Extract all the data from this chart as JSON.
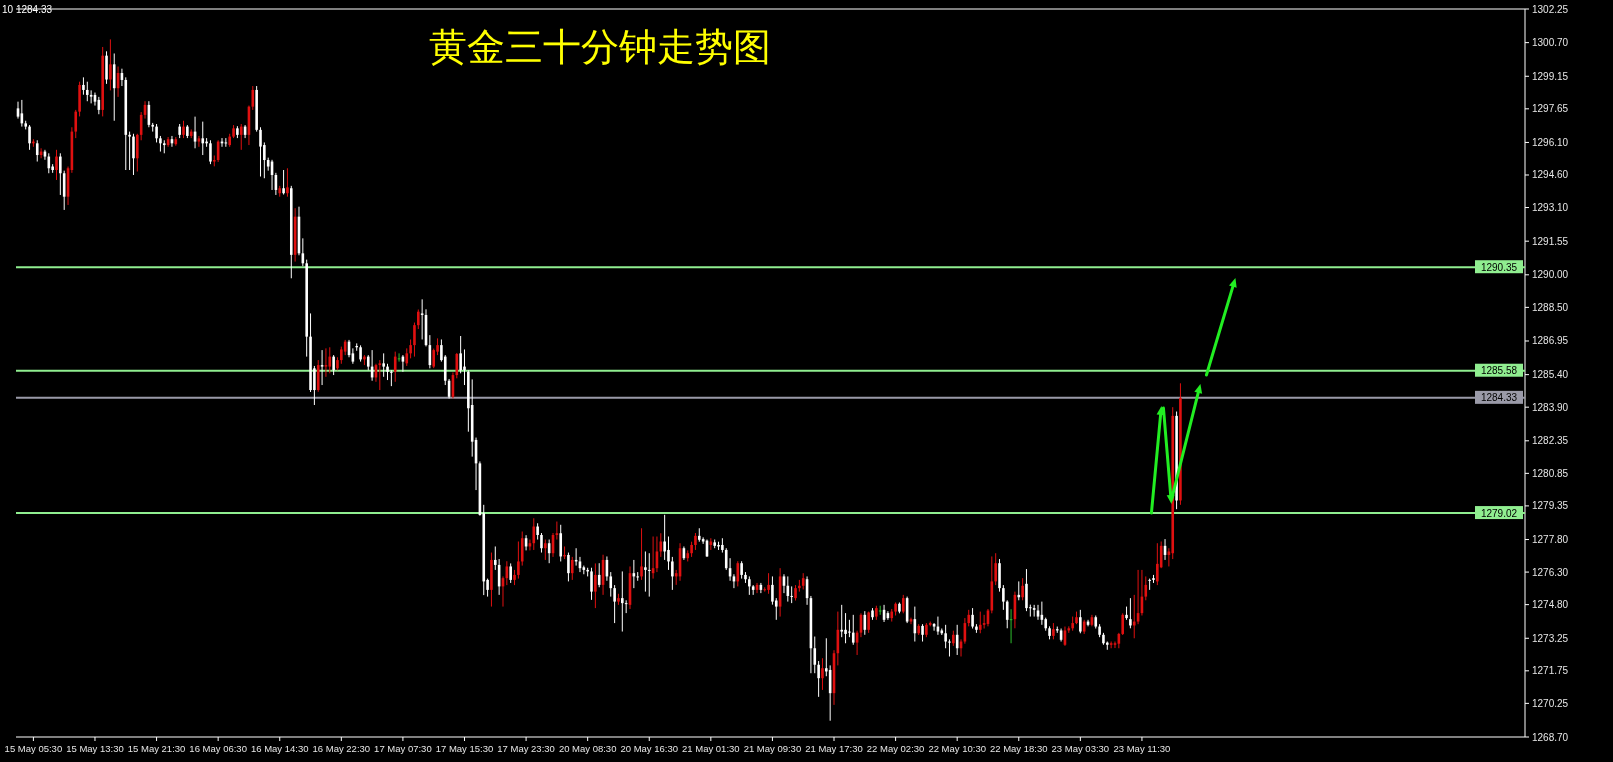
{
  "chart_data": {
    "type": "candlestick",
    "title": "黄金三十分钟走势图",
    "annotations": [
      "10 1284.33"
    ],
    "ylim": [
      1268.7,
      1302.25
    ],
    "yticks": [
      {
        "value": 1302.25,
        "label": "1302.25"
      },
      {
        "value": 1300.7,
        "label": "1300.70"
      },
      {
        "value": 1299.15,
        "label": "1299.15"
      },
      {
        "value": 1297.65,
        "label": "1297.65"
      },
      {
        "value": 1296.1,
        "label": "1296.10"
      },
      {
        "value": 1294.6,
        "label": "1294.60"
      },
      {
        "value": 1293.1,
        "label": "1293.10"
      },
      {
        "value": 1291.55,
        "label": "1291.55"
      },
      {
        "value": 1290.0,
        "label": "1290.00"
      },
      {
        "value": 1288.5,
        "label": "1288.50"
      },
      {
        "value": 1286.95,
        "label": "1286.95"
      },
      {
        "value": 1285.4,
        "label": "1285.40"
      },
      {
        "value": 1283.9,
        "label": "1283.90"
      },
      {
        "value": 1282.35,
        "label": "1282.35"
      },
      {
        "value": 1280.85,
        "label": "1280.85"
      },
      {
        "value": 1279.35,
        "label": "1279.35"
      },
      {
        "value": 1277.8,
        "label": "1277.80"
      },
      {
        "value": 1276.3,
        "label": "1276.30"
      },
      {
        "value": 1274.8,
        "label": "1274.80"
      },
      {
        "value": 1273.25,
        "label": "1273.25"
      },
      {
        "value": 1271.75,
        "label": "1271.75"
      },
      {
        "value": 1270.25,
        "label": "1270.25"
      },
      {
        "value": 1268.7,
        "label": "1268.70"
      }
    ],
    "ref_lines": [
      {
        "axis": "y",
        "value": 1290.35,
        "label": "1290.35",
        "color": "#90ee90"
      },
      {
        "axis": "y",
        "value": 1285.58,
        "label": "1285.58",
        "color": "#90ee90"
      },
      {
        "axis": "y",
        "value": 1279.02,
        "label": "1279.02",
        "color": "#90ee90"
      },
      {
        "axis": "y",
        "value": 1284.33,
        "label": "1284.33",
        "color": "#9a9aa8"
      }
    ],
    "categories": [
      null,
      null,
      null,
      null,
      "15 May 05:30",
      null,
      null,
      null,
      null,
      null,
      null,
      null,
      null,
      null,
      null,
      null,
      null,
      null,
      null,
      null,
      "15 May 13:30",
      null,
      null,
      null,
      null,
      null,
      null,
      null,
      null,
      null,
      null,
      null,
      null,
      null,
      null,
      null,
      "15 May 21:30",
      null,
      null,
      null,
      null,
      null,
      null,
      null,
      null,
      null,
      null,
      null,
      null,
      null,
      null,
      null,
      "16 May 06:30",
      null,
      null,
      null,
      null,
      null,
      null,
      null,
      null,
      null,
      null,
      null,
      null,
      null,
      null,
      null,
      "16 May 14:30",
      null,
      null,
      null,
      null,
      null,
      null,
      null,
      null,
      null,
      null,
      null,
      null,
      null,
      null,
      null,
      "16 May 22:30",
      null,
      null,
      null,
      null,
      null,
      null,
      null,
      null,
      null,
      null,
      null,
      null,
      null,
      null,
      null,
      "17 May 07:30",
      null,
      null,
      null,
      null,
      null,
      null,
      null,
      null,
      null,
      null,
      null,
      null,
      null,
      null,
      null,
      "17 May 15:30",
      null,
      null,
      null,
      null,
      null,
      null,
      null,
      null,
      null,
      null,
      null,
      null,
      null,
      null,
      null,
      "17 May 23:30",
      null,
      null,
      null,
      null,
      null,
      null,
      null,
      null,
      null,
      null,
      null,
      null,
      null,
      null,
      null,
      "20 May 08:30",
      null,
      null,
      null,
      null,
      null,
      null,
      null,
      null,
      null,
      null,
      null,
      null,
      null,
      null,
      null,
      "20 May 16:30",
      null,
      null,
      null,
      null,
      null,
      null,
      null,
      null,
      null,
      null,
      null,
      null,
      null,
      null,
      null,
      "21 May 01:30",
      null,
      null,
      null,
      null,
      null,
      null,
      null,
      null,
      null,
      null,
      null,
      null,
      null,
      null,
      null,
      "21 May 09:30",
      null,
      null,
      null,
      null,
      null,
      null,
      null,
      null,
      null,
      null,
      null,
      null,
      null,
      null,
      null,
      "21 May 17:30",
      null,
      null,
      null,
      null,
      null,
      null,
      null,
      null,
      null,
      null,
      null,
      null,
      null,
      null,
      null,
      "22 May 02:30",
      null,
      null,
      null,
      null,
      null,
      null,
      null,
      null,
      null,
      null,
      null,
      null,
      null,
      null,
      null,
      "22 May 10:30",
      null,
      null,
      null,
      null,
      null,
      null,
      null,
      null,
      null,
      null,
      null,
      null,
      null,
      null,
      null,
      "22 May 18:30",
      null,
      null,
      null,
      null,
      null,
      null,
      null,
      null,
      null,
      null,
      null,
      null,
      null,
      null,
      null,
      "23 May 03:30",
      null,
      null,
      null,
      null,
      null,
      null,
      null,
      null,
      null,
      null,
      null,
      null,
      null,
      null,
      null,
      "23 May 11:30",
      null,
      null,
      null,
      null,
      null,
      null,
      null,
      null,
      null,
      null,
      null,
      null,
      null,
      null,
      null,
      null,
      null,
      null,
      null,
      null,
      null,
      null,
      null,
      null,
      null,
      null,
      null,
      null,
      null,
      null,
      null,
      null,
      null,
      null,
      null,
      null,
      null,
      null,
      null,
      null,
      null,
      null,
      null,
      null,
      null,
      null,
      null,
      null,
      null,
      null,
      null,
      null,
      null,
      null,
      null,
      null,
      null,
      null,
      null,
      null,
      null,
      null,
      null,
      null,
      null,
      null,
      null,
      null,
      null,
      null,
      null,
      null,
      null,
      null,
      null,
      null,
      null,
      null,
      null,
      null,
      null,
      null,
      null,
      null,
      null,
      null,
      null,
      null,
      null,
      null,
      null,
      null,
      null,
      null,
      null,
      null,
      null,
      null,
      null
    ],
    "ohlc": [
      [
        1297.67,
        1297.98,
        1297.2,
        1297.29
      ],
      [
        1297.44,
        1298.06,
        1296.83,
        1296.98
      ],
      [
        1296.98,
        1297.1,
        1296.7,
        1296.83
      ],
      [
        1296.83,
        1296.9,
        1295.76,
        1296.06
      ],
      [
        1296.06,
        1296.25,
        1295.9,
        1296.14
      ],
      [
        1296.06,
        1296.2,
        1295.22,
        1295.52
      ],
      [
        1295.52,
        1295.83,
        1295.37,
        1295.68
      ],
      [
        1295.68,
        1295.76,
        1295.3,
        1295.45
      ],
      [
        1295.45,
        1295.6,
        1294.68,
        1294.91
      ],
      [
        1294.99,
        1295.1,
        1294.7,
        1294.83
      ],
      [
        1294.83,
        1295.76,
        1294.37,
        1295.45
      ],
      [
        1295.45,
        1295.6,
        1293.68,
        1294.68
      ],
      [
        1294.68,
        1294.8,
        1292.99,
        1293.6
      ],
      [
        1293.6,
        1294.99,
        1293.22,
        1294.91
      ],
      [
        1294.83,
        1296.8,
        1294.7,
        1296.6
      ],
      [
        1296.6,
        1297.6,
        1296.3,
        1297.52
      ],
      [
        1297.52,
        1298.9,
        1297.3,
        1298.75
      ],
      [
        1298.75,
        1299.1,
        1298.3,
        1298.52
      ],
      [
        1298.52,
        1298.9,
        1298.0,
        1298.29
      ],
      [
        1298.29,
        1298.5,
        1297.9,
        1298.21
      ],
      [
        1298.29,
        1298.4,
        1297.8,
        1297.98
      ],
      [
        1298.06,
        1298.2,
        1297.4,
        1297.6
      ],
      [
        1297.6,
        1300.5,
        1297.3,
        1300.1
      ],
      [
        1300.1,
        1300.3,
        1298.8,
        1299.0
      ],
      [
        1299.0,
        1300.85,
        1298.5,
        1299.7
      ],
      [
        1299.7,
        1300.2,
        1297.1,
        1298.6
      ],
      [
        1298.6,
        1299.6,
        1298.2,
        1299.3
      ],
      [
        1299.3,
        1299.5,
        1298.7,
        1298.98
      ],
      [
        1298.98,
        1299.1,
        1294.83,
        1296.45
      ],
      [
        1296.45,
        1296.6,
        1294.83,
        1296.37
      ],
      [
        1296.37,
        1296.5,
        1294.6,
        1295.37
      ],
      [
        1295.37,
        1296.5,
        1294.76,
        1296.45
      ],
      [
        1296.45,
        1297.5,
        1296.2,
        1297.37
      ],
      [
        1297.37,
        1298.0,
        1297.2,
        1297.83
      ],
      [
        1297.83,
        1298.0,
        1296.8,
        1296.91
      ],
      [
        1296.91,
        1297.0,
        1296.6,
        1296.83
      ],
      [
        1296.83,
        1296.95,
        1296.1,
        1296.29
      ],
      [
        1296.29,
        1296.4,
        1295.68,
        1296.06
      ],
      [
        1296.06,
        1296.2,
        1295.6,
        1295.98
      ],
      [
        1295.98,
        1296.35,
        1295.9,
        1296.25
      ],
      [
        1296.25,
        1296.4,
        1295.9,
        1296.06
      ],
      [
        1296.02,
        1296.35,
        1295.95,
        1296.25
      ],
      [
        1296.83,
        1296.95,
        1296.3,
        1296.45
      ],
      [
        1296.45,
        1297.1,
        1296.3,
        1296.83
      ],
      [
        1296.83,
        1296.9,
        1296.3,
        1296.4
      ],
      [
        1296.4,
        1296.7,
        1296.3,
        1296.6
      ],
      [
        1296.6,
        1297.29,
        1295.83,
        1296.14
      ],
      [
        1296.14,
        1296.4,
        1295.9,
        1296.29
      ],
      [
        1296.29,
        1297.06,
        1295.52,
        1296.06
      ],
      [
        1296.14,
        1296.3,
        1295.9,
        1296.06
      ],
      [
        1296.06,
        1296.2,
        1295.1,
        1295.22
      ],
      [
        1295.22,
        1295.5,
        1295.0,
        1295.29
      ],
      [
        1295.29,
        1296.2,
        1295.2,
        1296.14
      ],
      [
        1296.14,
        1296.3,
        1295.9,
        1296.06
      ],
      [
        1296.1,
        1296.3,
        1295.9,
        1296.06
      ],
      [
        1295.98,
        1296.5,
        1295.9,
        1296.37
      ],
      [
        1296.37,
        1296.9,
        1296.3,
        1296.75
      ],
      [
        1296.75,
        1296.85,
        1296.3,
        1296.45
      ],
      [
        1296.45,
        1296.95,
        1295.76,
        1296.83
      ],
      [
        1296.83,
        1296.9,
        1296.3,
        1296.45
      ],
      [
        1296.45,
        1297.8,
        1295.98,
        1297.75
      ],
      [
        1297.75,
        1298.7,
        1297.6,
        1298.52
      ],
      [
        1298.52,
        1298.7,
        1296.6,
        1296.68
      ],
      [
        1296.68,
        1296.8,
        1294.53,
        1295.91
      ],
      [
        1295.98,
        1296.1,
        1294.45,
        1295.29
      ],
      [
        1295.29,
        1295.4,
        1294.8,
        1294.99
      ],
      [
        1295.22,
        1295.3,
        1293.91,
        1294.6
      ],
      [
        1294.6,
        1294.7,
        1293.68,
        1293.91
      ],
      [
        1293.76,
        1294.1,
        1293.6,
        1293.99
      ],
      [
        1293.99,
        1294.83,
        1293.7,
        1293.76
      ],
      [
        1293.76,
        1294.91,
        1293.6,
        1294.03
      ],
      [
        1293.99,
        1294.1,
        1289.84,
        1290.92
      ],
      [
        1290.92,
        1293.07,
        1290.61,
        1292.68
      ],
      [
        1292.68,
        1293.14,
        1290.9,
        1290.99
      ],
      [
        1290.99,
        1291.68,
        1290.4,
        1290.53
      ],
      [
        1290.53,
        1290.7,
        1286.23,
        1287.15
      ],
      [
        1287.15,
        1288.22,
        1284.6,
        1284.69
      ],
      [
        1285.69,
        1285.8,
        1284.0,
        1284.69
      ],
      [
        1284.69,
        1286.07,
        1284.61,
        1285.84
      ],
      [
        1285.84,
        1286.53,
        1284.92,
        1285.77
      ],
      [
        1285.77,
        1286.61,
        1285.3,
        1285.84
      ],
      [
        1285.77,
        1286.66,
        1285.46,
        1286.23
      ],
      [
        1286.23,
        1286.3,
        1285.38,
        1285.61
      ],
      [
        1285.69,
        1286.2,
        1285.6,
        1286.07
      ],
      [
        1286.07,
        1286.69,
        1285.9,
        1286.56
      ],
      [
        1286.46,
        1287.0,
        1286.3,
        1286.92
      ],
      [
        1286.92,
        1287.0,
        1286.2,
        1286.3
      ],
      [
        1286.38,
        1286.61,
        1285.9,
        1286.0
      ],
      [
        1286.72,
        1286.84,
        1286.5,
        1286.66
      ],
      [
        1286.66,
        1286.75,
        1286.0,
        1286.1
      ],
      [
        1286.1,
        1286.3,
        1285.84,
        1286.23
      ],
      [
        1286.23,
        1286.3,
        1285.6,
        1285.77
      ],
      [
        1285.77,
        1286.53,
        1285.12,
        1285.27
      ],
      [
        1285.27,
        1285.9,
        1285.07,
        1285.84
      ],
      [
        1285.84,
        1286.07,
        1284.69,
        1285.92
      ],
      [
        1285.92,
        1286.38,
        1285.3,
        1285.77
      ],
      [
        1285.77,
        1285.9,
        1285.15,
        1285.53
      ],
      [
        1285.53,
        1285.6,
        1284.87,
        1285.5
      ],
      [
        1285.53,
        1286.46,
        1285.07,
        1286.23
      ],
      [
        1286.15,
        1286.38,
        1286.0,
        1286.15
      ],
      [
        1286.23,
        1286.3,
        1285.53,
        1286.0
      ],
      [
        1285.92,
        1286.61,
        1285.8,
        1286.38
      ],
      [
        1286.38,
        1287.02,
        1286.15,
        1286.76
      ],
      [
        1286.76,
        1287.8,
        1286.23,
        1287.68
      ],
      [
        1287.68,
        1288.4,
        1287.5,
        1288.3
      ],
      [
        1288.22,
        1288.87,
        1287.02,
        1288.15
      ],
      [
        1288.15,
        1288.41,
        1286.7,
        1286.76
      ],
      [
        1286.76,
        1287.22,
        1285.69,
        1285.84
      ],
      [
        1285.77,
        1286.6,
        1285.7,
        1286.53
      ],
      [
        1286.46,
        1287.07,
        1286.3,
        1286.76
      ],
      [
        1286.76,
        1287.02,
        1286.0,
        1286.07
      ],
      [
        1286.23,
        1286.3,
        1284.92,
        1285.12
      ],
      [
        1285.12,
        1285.2,
        1284.3,
        1284.38
      ],
      [
        1284.38,
        1285.5,
        1284.3,
        1285.38
      ],
      [
        1285.38,
        1286.4,
        1285.23,
        1286.35
      ],
      [
        1286.38,
        1287.18,
        1285.46,
        1285.61
      ],
      [
        1285.77,
        1286.56,
        1284.92,
        1285.61
      ],
      [
        1285.53,
        1285.6,
        1282.77,
        1283.85
      ],
      [
        1284.0,
        1285.18,
        1281.62,
        1282.31
      ],
      [
        1282.39,
        1282.5,
        1280.08,
        1281.31
      ],
      [
        1281.31,
        1281.4,
        1278.9,
        1278.93
      ],
      [
        1279.01,
        1279.4,
        1275.24,
        1275.87
      ],
      [
        1275.94,
        1276.0,
        1275.17,
        1275.48
      ],
      [
        1275.48,
        1277.2,
        1274.71,
        1276.86
      ],
      [
        1276.86,
        1277.48,
        1276.4,
        1276.63
      ],
      [
        1276.63,
        1276.9,
        1275.25,
        1275.64
      ],
      [
        1275.64,
        1276.1,
        1274.71,
        1276.02
      ],
      [
        1276.02,
        1276.8,
        1275.7,
        1276.56
      ],
      [
        1276.56,
        1276.7,
        1275.8,
        1275.94
      ],
      [
        1275.94,
        1276.4,
        1275.7,
        1276.17
      ],
      [
        1276.17,
        1277.71,
        1276.0,
        1276.79
      ],
      [
        1276.79,
        1278.17,
        1276.6,
        1277.86
      ],
      [
        1277.86,
        1278.0,
        1277.3,
        1277.48
      ],
      [
        1277.48,
        1277.8,
        1277.3,
        1277.63
      ],
      [
        1277.63,
        1278.78,
        1277.32,
        1278.4
      ],
      [
        1278.4,
        1278.55,
        1277.8,
        1278.01
      ],
      [
        1278.01,
        1278.1,
        1277.2,
        1277.4
      ],
      [
        1277.4,
        1277.8,
        1276.86,
        1277.63
      ],
      [
        1277.63,
        1277.8,
        1276.71,
        1277.17
      ],
      [
        1277.17,
        1278.1,
        1277.0,
        1278.01
      ],
      [
        1278.01,
        1278.63,
        1277.8,
        1278.09
      ],
      [
        1278.09,
        1278.48,
        1276.79,
        1277.02
      ],
      [
        1277.02,
        1277.48,
        1276.9,
        1277.09
      ],
      [
        1277.09,
        1277.2,
        1275.87,
        1276.25
      ],
      [
        1276.25,
        1277.0,
        1275.94,
        1276.86
      ],
      [
        1276.86,
        1277.4,
        1276.6,
        1276.79
      ],
      [
        1276.79,
        1277.0,
        1276.3,
        1276.48
      ],
      [
        1276.52,
        1276.6,
        1276.2,
        1276.4
      ],
      [
        1276.4,
        1276.5,
        1276.1,
        1276.33
      ],
      [
        1276.33,
        1276.5,
        1275.02,
        1275.4
      ],
      [
        1275.4,
        1276.7,
        1274.64,
        1276.17
      ],
      [
        1276.17,
        1276.71,
        1275.6,
        1275.71
      ],
      [
        1275.71,
        1277.1,
        1275.25,
        1276.86
      ],
      [
        1276.86,
        1277.02,
        1275.9,
        1276.1
      ],
      [
        1276.1,
        1276.3,
        1275.17,
        1275.56
      ],
      [
        1275.56,
        1275.7,
        1273.95,
        1274.94
      ],
      [
        1274.94,
        1275.3,
        1274.79,
        1275.1
      ],
      [
        1275.1,
        1276.33,
        1273.56,
        1274.87
      ],
      [
        1274.87,
        1275.0,
        1274.41,
        1274.84
      ],
      [
        1274.79,
        1276.56,
        1274.6,
        1276.25
      ],
      [
        1276.25,
        1276.86,
        1275.56,
        1276.1
      ],
      [
        1276.1,
        1276.3,
        1275.9,
        1276.06
      ],
      [
        1276.1,
        1278.32,
        1275.94,
        1276.56
      ],
      [
        1276.52,
        1277.25,
        1275.4,
        1276.4
      ],
      [
        1276.4,
        1277.17,
        1275.17,
        1276.37
      ],
      [
        1276.25,
        1277.94,
        1276.0,
        1276.48
      ],
      [
        1276.48,
        1277.94,
        1276.3,
        1277.25
      ],
      [
        1277.25,
        1278.09,
        1277.0,
        1277.71
      ],
      [
        1277.71,
        1278.94,
        1276.86,
        1277.25
      ],
      [
        1277.32,
        1277.94,
        1276.4,
        1276.79
      ],
      [
        1276.79,
        1277.0,
        1275.48,
        1276.1
      ],
      [
        1276.1,
        1276.4,
        1275.71,
        1276.25
      ],
      [
        1276.1,
        1277.63,
        1275.9,
        1277.4
      ],
      [
        1277.4,
        1277.48,
        1276.86,
        1276.94
      ],
      [
        1276.94,
        1277.3,
        1276.79,
        1277.17
      ],
      [
        1277.17,
        1277.7,
        1277.0,
        1277.55
      ],
      [
        1277.55,
        1278.1,
        1277.32,
        1277.97
      ],
      [
        1277.97,
        1278.32,
        1277.7,
        1277.79
      ],
      [
        1277.82,
        1277.9,
        1277.6,
        1277.71
      ],
      [
        1277.75,
        1277.8,
        1277.0,
        1277.02
      ],
      [
        1277.55,
        1277.86,
        1277.32,
        1277.71
      ],
      [
        1277.67,
        1277.8,
        1277.4,
        1277.51
      ],
      [
        1277.55,
        1277.7,
        1277.32,
        1277.48
      ],
      [
        1277.55,
        1277.86,
        1277.2,
        1277.32
      ],
      [
        1277.32,
        1277.4,
        1276.4,
        1276.48
      ],
      [
        1276.48,
        1276.94,
        1275.9,
        1276.1
      ],
      [
        1276.1,
        1276.2,
        1275.56,
        1275.87
      ],
      [
        1275.87,
        1276.8,
        1275.64,
        1276.71
      ],
      [
        1276.71,
        1276.8,
        1276.0,
        1276.17
      ],
      [
        1276.17,
        1276.3,
        1275.8,
        1275.97
      ],
      [
        1275.97,
        1276.1,
        1275.25,
        1275.64
      ],
      [
        1275.64,
        1275.7,
        1275.25,
        1275.48
      ],
      [
        1275.48,
        1275.8,
        1275.33,
        1275.71
      ],
      [
        1275.71,
        1275.8,
        1275.33,
        1275.48
      ],
      [
        1275.48,
        1275.6,
        1275.4,
        1275.51
      ],
      [
        1275.48,
        1276.25,
        1275.3,
        1275.71
      ],
      [
        1275.71,
        1276.1,
        1274.8,
        1274.94
      ],
      [
        1274.99,
        1275.1,
        1274.1,
        1274.71
      ],
      [
        1274.71,
        1276.48,
        1274.25,
        1276.1
      ],
      [
        1276.1,
        1276.2,
        1275.33,
        1275.67
      ],
      [
        1275.67,
        1276.1,
        1274.94,
        1275.2
      ],
      [
        1275.2,
        1275.64,
        1274.87,
        1275.17
      ],
      [
        1275.1,
        1275.7,
        1274.99,
        1275.56
      ],
      [
        1275.56,
        1275.94,
        1275.4,
        1275.67
      ],
      [
        1275.67,
        1276.25,
        1275.5,
        1276.02
      ],
      [
        1275.97,
        1276.1,
        1274.79,
        1275.1
      ],
      [
        1275.1,
        1275.2,
        1271.64,
        1272.79
      ],
      [
        1272.79,
        1273.33,
        1271.64,
        1272.03
      ],
      [
        1272.03,
        1272.2,
        1270.55,
        1271.41
      ],
      [
        1271.41,
        1272.33,
        1270.87,
        1271.87
      ],
      [
        1271.87,
        1273.25,
        1271.5,
        1271.72
      ],
      [
        1271.79,
        1272.0,
        1269.45,
        1270.72
      ],
      [
        1270.72,
        1272.7,
        1270.18,
        1272.56
      ],
      [
        1272.56,
        1274.48,
        1272.0,
        1273.64
      ],
      [
        1273.64,
        1274.79,
        1273.3,
        1273.56
      ],
      [
        1273.64,
        1274.41,
        1273.02,
        1273.45
      ],
      [
        1273.56,
        1274.1,
        1273.3,
        1273.51
      ],
      [
        1273.51,
        1274.33,
        1272.95,
        1273.05
      ],
      [
        1273.05,
        1273.6,
        1272.48,
        1273.51
      ],
      [
        1273.51,
        1274.4,
        1273.3,
        1274.33
      ],
      [
        1274.33,
        1274.5,
        1273.41,
        1273.64
      ],
      [
        1273.64,
        1274.48,
        1273.5,
        1274.44
      ],
      [
        1274.53,
        1274.64,
        1274.1,
        1274.22
      ],
      [
        1274.25,
        1274.75,
        1274.1,
        1274.64
      ],
      [
        1274.53,
        1274.75,
        1274.33,
        1274.53
      ],
      [
        1274.56,
        1274.79,
        1274.0,
        1274.1
      ],
      [
        1274.41,
        1274.5,
        1274.1,
        1274.18
      ],
      [
        1274.18,
        1274.6,
        1274.02,
        1274.48
      ],
      [
        1274.48,
        1274.9,
        1274.3,
        1274.84
      ],
      [
        1274.84,
        1274.9,
        1274.4,
        1274.48
      ],
      [
        1274.48,
        1275.25,
        1274.4,
        1275.1
      ],
      [
        1275.1,
        1275.17,
        1273.95,
        1274.02
      ],
      [
        1274.02,
        1274.2,
        1273.9,
        1274.13
      ],
      [
        1274.13,
        1274.71,
        1273.1,
        1273.48
      ],
      [
        1273.48,
        1273.9,
        1273.4,
        1273.82
      ],
      [
        1273.82,
        1273.9,
        1273.1,
        1273.41
      ],
      [
        1273.41,
        1273.95,
        1273.3,
        1273.87
      ],
      [
        1273.87,
        1274.02,
        1273.8,
        1273.95
      ],
      [
        1273.91,
        1273.95,
        1273.6,
        1273.79
      ],
      [
        1273.79,
        1274.25,
        1273.41,
        1273.56
      ],
      [
        1273.61,
        1273.7,
        1273.4,
        1273.48
      ],
      [
        1273.48,
        1273.87,
        1272.79,
        1273.1
      ],
      [
        1273.1,
        1273.2,
        1272.41,
        1273.05
      ],
      [
        1273.02,
        1273.6,
        1272.9,
        1273.41
      ],
      [
        1273.41,
        1273.87,
        1272.48,
        1272.79
      ],
      [
        1272.79,
        1273.2,
        1272.41,
        1273.1
      ],
      [
        1273.1,
        1274.18,
        1273.0,
        1273.95
      ],
      [
        1273.95,
        1274.56,
        1273.8,
        1274.33
      ],
      [
        1274.33,
        1274.64,
        1273.7,
        1273.79
      ],
      [
        1273.79,
        1273.9,
        1273.5,
        1273.64
      ],
      [
        1273.64,
        1274.48,
        1273.48,
        1273.87
      ],
      [
        1273.87,
        1274.33,
        1273.7,
        1273.95
      ],
      [
        1273.91,
        1274.6,
        1273.8,
        1274.53
      ],
      [
        1274.53,
        1277.02,
        1274.4,
        1275.87
      ],
      [
        1275.87,
        1277.17,
        1275.7,
        1276.71
      ],
      [
        1276.71,
        1276.9,
        1275.4,
        1275.56
      ],
      [
        1275.56,
        1275.7,
        1274.56,
        1274.94
      ],
      [
        1274.94,
        1275.0,
        1273.71,
        1274.1
      ],
      [
        1274.13,
        1274.59,
        1273.02,
        1274.13
      ],
      [
        1274.13,
        1275.4,
        1273.71,
        1275.25
      ],
      [
        1275.25,
        1275.87,
        1275.0,
        1275.14
      ],
      [
        1275.14,
        1276.02,
        1275.0,
        1275.67
      ],
      [
        1275.76,
        1276.44,
        1274.5,
        1274.64
      ],
      [
        1274.68,
        1274.8,
        1274.25,
        1274.64
      ],
      [
        1274.64,
        1274.79,
        1274.25,
        1274.56
      ],
      [
        1274.53,
        1274.79,
        1274.1,
        1274.25
      ],
      [
        1274.33,
        1274.94,
        1273.87,
        1274.1
      ],
      [
        1274.13,
        1274.2,
        1273.6,
        1273.71
      ],
      [
        1273.71,
        1273.8,
        1273.2,
        1273.36
      ],
      [
        1273.36,
        1273.95,
        1273.2,
        1273.67
      ],
      [
        1273.67,
        1273.79,
        1273.5,
        1273.61
      ],
      [
        1273.61,
        1273.7,
        1273.1,
        1273.18
      ],
      [
        1272.95,
        1273.79,
        1272.9,
        1273.61
      ],
      [
        1273.61,
        1273.8,
        1273.5,
        1273.71
      ],
      [
        1273.71,
        1274.25,
        1273.6,
        1273.95
      ],
      [
        1273.95,
        1274.48,
        1273.9,
        1274.22
      ],
      [
        1274.22,
        1274.56,
        1273.48,
        1273.56
      ],
      [
        1273.56,
        1274.1,
        1273.45,
        1274.02
      ],
      [
        1274.02,
        1274.1,
        1273.8,
        1273.87
      ],
      [
        1273.87,
        1274.33,
        1273.8,
        1274.22
      ],
      [
        1274.22,
        1274.3,
        1273.7,
        1273.79
      ],
      [
        1273.79,
        1273.9,
        1273.3,
        1273.41
      ],
      [
        1273.41,
        1273.5,
        1272.95,
        1273.02
      ],
      [
        1273.05,
        1273.1,
        1272.72,
        1272.95
      ],
      [
        1272.95,
        1273.1,
        1272.79,
        1273.02
      ],
      [
        1272.95,
        1273.1,
        1272.8,
        1273.02
      ],
      [
        1273.0,
        1273.5,
        1272.79,
        1273.45
      ],
      [
        1273.45,
        1274.4,
        1273.4,
        1274.33
      ],
      [
        1274.33,
        1274.71,
        1274.1,
        1274.18
      ],
      [
        1274.13,
        1275.1,
        1273.71,
        1273.84
      ],
      [
        1273.84,
        1275.25,
        1273.25,
        1274.02
      ],
      [
        1274.02,
        1276.4,
        1273.9,
        1274.41
      ],
      [
        1274.41,
        1276.4,
        1274.3,
        1275.17
      ],
      [
        1275.17,
        1276.1,
        1275.0,
        1275.71
      ],
      [
        1275.94,
        1276.0,
        1275.48,
        1275.91
      ],
      [
        1276.02,
        1276.17,
        1275.8,
        1275.94
      ],
      [
        1275.87,
        1277.63,
        1275.7,
        1276.68
      ],
      [
        1276.52,
        1277.71,
        1276.48,
        1277.51
      ],
      [
        1277.51,
        1277.82,
        1276.86,
        1277.09
      ],
      [
        1277.09,
        1277.4,
        1276.56,
        1277.25
      ],
      [
        1277.17,
        1283.9,
        1276.9,
        1283.5
      ],
      [
        1283.5,
        1283.7,
        1279.2,
        1279.6
      ],
      [
        1279.6,
        1285.0,
        1279.4,
        1284.33
      ],
      null,
      null,
      null,
      null,
      null,
      null,
      null,
      null,
      null,
      null,
      null,
      null,
      null,
      null,
      null,
      null,
      null,
      null,
      null,
      null,
      null,
      null,
      null,
      null,
      null,
      null,
      null,
      null,
      null,
      null,
      null,
      null,
      null,
      null,
      null,
      null,
      null,
      null,
      null,
      null,
      null,
      null,
      null,
      null,
      null,
      null,
      null,
      null,
      null,
      null,
      null,
      null,
      null,
      null,
      null,
      null,
      null,
      null,
      null,
      null,
      null,
      null,
      null,
      null,
      null,
      null,
      null,
      null,
      null,
      null,
      null,
      null,
      null,
      null,
      null,
      null,
      null,
      null,
      null,
      null,
      null,
      null,
      null,
      null,
      null,
      null,
      null,
      null,
      null
    ]
  }
}
